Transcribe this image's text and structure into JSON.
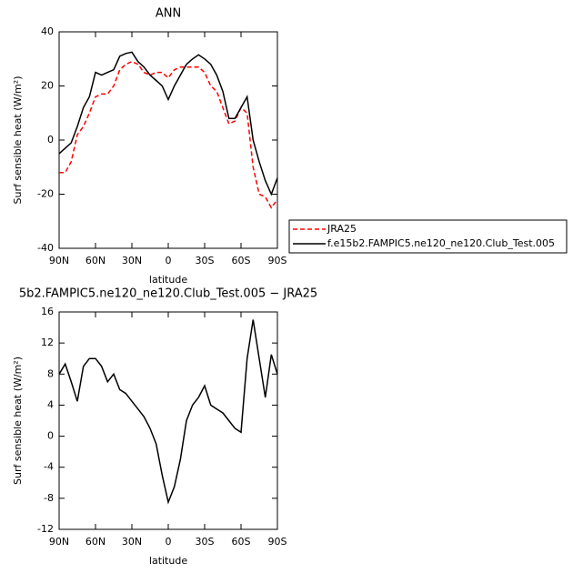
{
  "chart_data": [
    {
      "type": "line",
      "title": "ANN",
      "xlabel": "latitude",
      "ylabel": "Surf sensible heat (W/m²)",
      "x": [
        90,
        85,
        80,
        75,
        70,
        65,
        60,
        55,
        50,
        45,
        40,
        35,
        30,
        25,
        20,
        15,
        10,
        5,
        0,
        -5,
        -10,
        -15,
        -20,
        -25,
        -30,
        -35,
        -40,
        -45,
        -50,
        -55,
        -60,
        -65,
        -70,
        -75,
        -80,
        -85,
        -90
      ],
      "series": [
        {
          "name": "JRA25",
          "color": "#ff0000",
          "style": "dashed",
          "values": [
            -12,
            -12,
            -8,
            2,
            5,
            10,
            16,
            17,
            17,
            20,
            26,
            28,
            29,
            28,
            25,
            24,
            25,
            25,
            23,
            26,
            27,
            27,
            27,
            27,
            25,
            20,
            18,
            12,
            6,
            7,
            12,
            10,
            -10,
            -20,
            -21,
            -25,
            -22
          ]
        },
        {
          "name": "f.e15b2.FAMPIC5.ne120_ne120.Club_Test.005",
          "color": "#000000",
          "style": "solid",
          "values": [
            -5,
            -3,
            -1,
            5,
            12,
            16,
            25,
            24,
            25,
            26,
            31,
            32,
            32.5,
            29,
            27,
            24,
            22,
            20,
            15,
            20,
            24,
            28,
            30,
            31.5,
            30,
            28,
            24,
            18,
            8,
            8,
            12,
            16,
            0,
            -8,
            -15,
            -20,
            -14
          ]
        }
      ],
      "legend": "right",
      "xlim": [
        90,
        -90
      ],
      "xticks": [
        {
          "value": 90,
          "label": "90N"
        },
        {
          "value": 60,
          "label": "60N"
        },
        {
          "value": 30,
          "label": "30N"
        },
        0,
        {
          "value": -30,
          "label": "30S"
        },
        {
          "value": -60,
          "label": "60S"
        },
        {
          "value": -90,
          "label": "90S"
        }
      ],
      "ylim": [
        -40,
        40
      ],
      "yticks": [
        -40,
        -20,
        0,
        20,
        40
      ]
    },
    {
      "type": "line",
      "title": "5b2.FAMPIC5.ne120_ne120.Club_Test.005 − JRA25",
      "xlabel": "latitude",
      "ylabel": "Surf sensible heat (W/m²)",
      "x": [
        90,
        85,
        80,
        75,
        70,
        65,
        60,
        55,
        50,
        45,
        40,
        35,
        30,
        25,
        20,
        15,
        10,
        5,
        0,
        -5,
        -10,
        -15,
        -20,
        -25,
        -30,
        -35,
        -40,
        -45,
        -50,
        -55,
        -60,
        -65,
        -70,
        -75,
        -80,
        -85,
        -90
      ],
      "series": [
        {
          "color": "#000000",
          "style": "solid",
          "values": [
            8,
            9.3,
            7,
            4.5,
            9,
            10,
            10,
            9,
            7,
            8,
            6,
            5.5,
            4.5,
            3.5,
            2.5,
            1,
            -1,
            -5,
            -8.5,
            -6.5,
            -3,
            2,
            4,
            5,
            6.5,
            4,
            3.5,
            3,
            2,
            1,
            0.5,
            10,
            15,
            10,
            5,
            10.5,
            8
          ]
        }
      ],
      "xlim": [
        90,
        -90
      ],
      "xticks": [
        {
          "value": 90,
          "label": "90N"
        },
        {
          "value": 60,
          "label": "60N"
        },
        {
          "value": 30,
          "label": "30N"
        },
        0,
        {
          "value": -30,
          "label": "30S"
        },
        {
          "value": -60,
          "label": "60S"
        },
        {
          "value": -90,
          "label": "90S"
        }
      ],
      "ylim": [
        -12,
        16
      ],
      "yticks": [
        -12,
        -8,
        -4,
        0,
        4,
        8,
        12,
        16
      ]
    }
  ]
}
